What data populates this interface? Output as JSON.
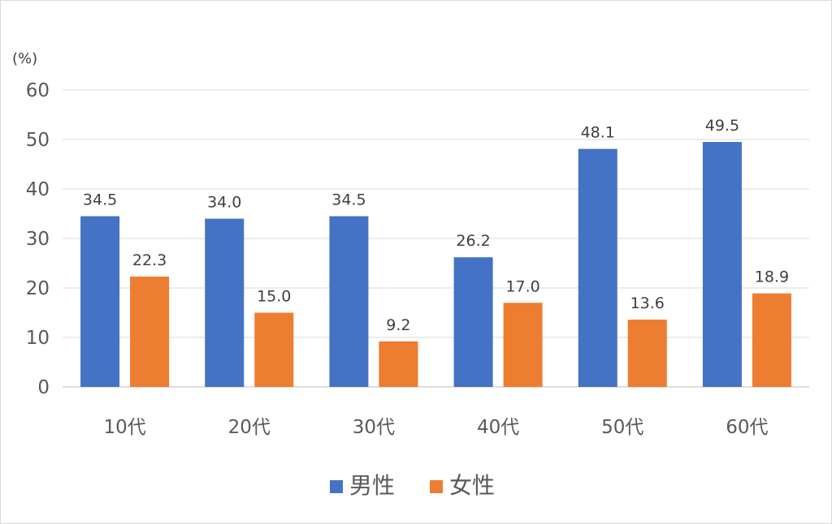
{
  "chart_data": {
    "type": "bar",
    "unit_label": "(%)",
    "title": "",
    "xlabel": "",
    "ylabel": "",
    "categories": [
      "10代",
      "20代",
      "30代",
      "40代",
      "50代",
      "60代"
    ],
    "series": [
      {
        "name": "男性",
        "color": "#4472C4",
        "values": [
          34.5,
          34.0,
          34.5,
          26.2,
          48.1,
          49.5
        ],
        "labels": [
          "34.5",
          "34.0",
          "34.5",
          "26.2",
          "48.1",
          "49.5"
        ]
      },
      {
        "name": "女性",
        "color": "#ED7D31",
        "values": [
          22.3,
          15.0,
          9.2,
          17.0,
          13.6,
          18.9
        ],
        "labels": [
          "22.3",
          "15.0",
          "9.2",
          "17.0",
          "13.6",
          "18.9"
        ]
      }
    ],
    "ylim": [
      0,
      60
    ],
    "yticks": [
      0,
      10,
      20,
      30,
      40,
      50,
      60
    ],
    "grid": true,
    "legend_position": "bottom"
  }
}
